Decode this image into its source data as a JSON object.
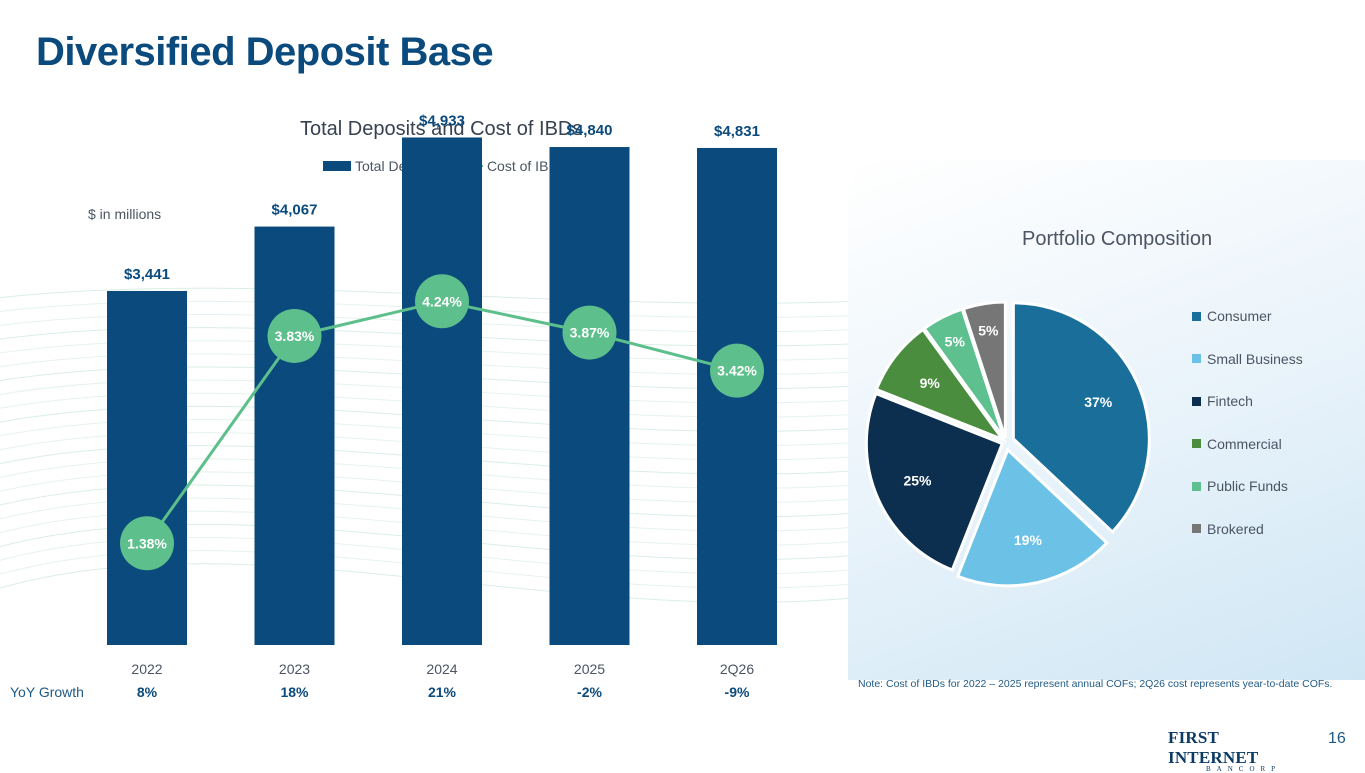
{
  "slide": {
    "title": "Diversified Deposit Base",
    "page_number": "16",
    "note": "Note: Cost of IBDs for 2022 – 2025 represent annual COFs; 2Q26 cost represents year-to-date COFs.",
    "logo": {
      "main": "FIRST INTERNET",
      "sub": "BANCORP"
    }
  },
  "colors": {
    "title": "#0b4a7d",
    "bar": "#0a4a7c",
    "line": "#5dbf8b",
    "consumer": "#196f9a",
    "small_business": "#6cc1e6",
    "fintech": "#0d2f4f",
    "commercial": "#4a8d3e",
    "public_funds": "#5ec08e",
    "brokered": "#767676"
  },
  "yoy": {
    "label": "YoY Growth",
    "values": [
      "8%",
      "18%",
      "21%",
      "-2%",
      "-9%"
    ]
  },
  "chart_data": [
    {
      "type": "bar",
      "title": "Total Deposits and Cost of IBDs",
      "units_label": "$ in millions",
      "categories": [
        "2022",
        "2023",
        "2024",
        "2025",
        "2Q26"
      ],
      "series": [
        {
          "name": "Total Deposits",
          "type": "bar",
          "values": [
            3441,
            4067,
            4933,
            4840,
            4831
          ],
          "labels": [
            "$3,441",
            "$4,067",
            "$4,933",
            "$4,840",
            "$4,831"
          ]
        },
        {
          "name": "Cost of IBDs",
          "type": "line",
          "values": [
            1.38,
            3.83,
            4.24,
            3.87,
            3.42
          ],
          "labels": [
            "1.38%",
            "3.83%",
            "4.24%",
            "3.87%",
            "3.42%"
          ]
        }
      ],
      "ylim": [
        0,
        5200
      ],
      "legend": "top-center",
      "grid": false
    },
    {
      "type": "pie",
      "title": "Portfolio Composition",
      "categories": [
        "Consumer",
        "Small Business",
        "Fintech",
        "Commercial",
        "Public Funds",
        "Brokered"
      ],
      "values": [
        37,
        19,
        25,
        9,
        5,
        5
      ],
      "labels": [
        "37%",
        "19%",
        "25%",
        "9%",
        "5%",
        "5%"
      ],
      "legend": "right"
    }
  ]
}
